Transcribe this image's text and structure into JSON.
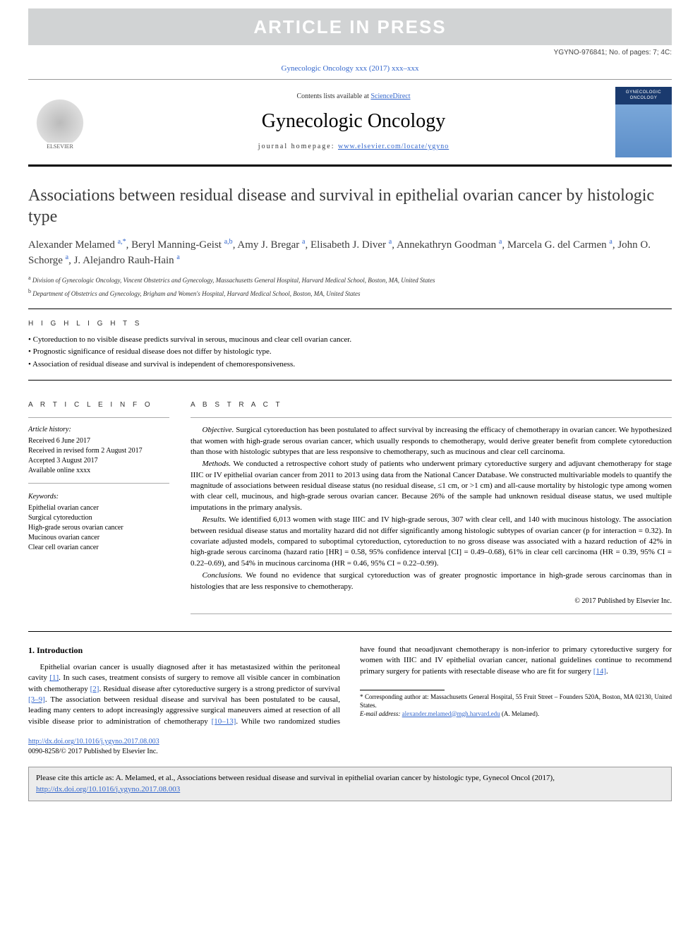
{
  "banner": {
    "text": "ARTICLE IN PRESS"
  },
  "topRight": "YGYNO-976841; No. of pages: 7; 4C:",
  "journalRef": "Gynecologic Oncology xxx (2017) xxx–xxx",
  "masthead": {
    "contentsPrefix": "Contents lists available at ",
    "contentsLink": "ScienceDirect",
    "journalTitle": "Gynecologic Oncology",
    "homepagePrefix": "journal homepage: ",
    "homepageLink": "www.elsevier.com/locate/ygyno",
    "publisher": "ELSEVIER",
    "coverTitle": "GYNECOLOGIC ONCOLOGY"
  },
  "article": {
    "title": "Associations between residual disease and survival in epithelial ovarian cancer by histologic type",
    "authors": [
      {
        "name": "Alexander Melamed",
        "aff": "a,*"
      },
      {
        "name": "Beryl Manning-Geist",
        "aff": "a,b"
      },
      {
        "name": "Amy J. Bregar",
        "aff": "a"
      },
      {
        "name": "Elisabeth J. Diver",
        "aff": "a"
      },
      {
        "name": "Annekathryn Goodman",
        "aff": "a"
      },
      {
        "name": "Marcela G. del Carmen",
        "aff": "a"
      },
      {
        "name": "John O. Schorge",
        "aff": "a"
      },
      {
        "name": "J. Alejandro Rauh-Hain",
        "aff": "a"
      }
    ],
    "affiliations": [
      {
        "key": "a",
        "text": "Division of Gynecologic Oncology, Vincent Obstetrics and Gynecology, Massachusetts General Hospital, Harvard Medical School, Boston, MA, United States"
      },
      {
        "key": "b",
        "text": "Department of Obstetrics and Gynecology, Brigham and Women's Hospital, Harvard Medical School, Boston, MA, United States"
      }
    ]
  },
  "highlights": {
    "label": "H I G H L I G H T S",
    "items": [
      "Cytoreduction to no visible disease predicts survival in serous, mucinous and clear cell ovarian cancer.",
      "Prognostic significance of residual disease does not differ by histologic type.",
      "Association of residual disease and survival is independent of chemoresponsiveness."
    ]
  },
  "articleInfo": {
    "label": "A R T I C L E   I N F O",
    "historyHead": "Article history:",
    "history": [
      "Received 6 June 2017",
      "Received in revised form 2 August 2017",
      "Accepted 3 August 2017",
      "Available online xxxx"
    ],
    "keywordsHead": "Keywords:",
    "keywords": [
      "Epithelial ovarian cancer",
      "Surgical cytoreduction",
      "High-grade serous ovarian cancer",
      "Mucinous ovarian cancer",
      "Clear cell ovarian cancer"
    ]
  },
  "abstract": {
    "label": "A B S T R A C T",
    "paras": [
      {
        "label": "Objective.",
        "text": " Surgical cytoreduction has been postulated to affect survival by increasing the efficacy of chemotherapy in ovarian cancer. We hypothesized that women with high-grade serous ovarian cancer, which usually responds to chemotherapy, would derive greater benefit from complete cytoreduction than those with histologic subtypes that are less responsive to chemotherapy, such as mucinous and clear cell carcinoma."
      },
      {
        "label": "Methods.",
        "text": " We conducted a retrospective cohort study of patients who underwent primary cytoreductive surgery and adjuvant chemotherapy for stage IIIC or IV epithelial ovarian cancer from 2011 to 2013 using data from the National Cancer Database. We constructed multivariable models to quantify the magnitude of associations between residual disease status (no residual disease, ≤1 cm, or >1 cm) and all-cause mortality by histologic type among women with clear cell, mucinous, and high-grade serous ovarian cancer. Because 26% of the sample had unknown residual disease status, we used multiple imputations in the primary analysis."
      },
      {
        "label": "Results.",
        "text": " We identified 6,013 women with stage IIIC and IV high-grade serous, 307 with clear cell, and 140 with mucinous histology. The association between residual disease status and mortality hazard did not differ significantly among histologic subtypes of ovarian cancer (p for interaction = 0.32). In covariate adjusted models, compared to suboptimal cytoreduction, cytoreduction to no gross disease was associated with a hazard reduction of 42% in high-grade serous carcinoma (hazard ratio [HR] = 0.58, 95% confidence interval [CI] = 0.49–0.68), 61% in clear cell carcinoma (HR = 0.39, 95% CI = 0.22–0.69), and 54% in mucinous carcinoma (HR = 0.46, 95% CI = 0.22–0.99)."
      },
      {
        "label": "Conclusions.",
        "text": " We found no evidence that surgical cytoreduction was of greater prognostic importance in high-grade serous carcinomas than in histologies that are less responsive to chemotherapy."
      }
    ],
    "copyright": "© 2017 Published by Elsevier Inc."
  },
  "intro": {
    "heading": "1. Introduction",
    "p1a": "Epithelial ovarian cancer is usually diagnosed after it has metastasized within the peritoneal cavity ",
    "p1ref1": "[1]",
    "p1b": ". In such cases, treatment consists of surgery to remove all visible cancer in combination with ",
    "p2a": "chemotherapy ",
    "p2ref2": "[2]",
    "p2b": ". Residual disease after cytoreductive surgery is a strong predictor of survival ",
    "p2ref39": "[3–9]",
    "p2c": ". The association between residual disease and survival has been postulated to be causal, leading many centers to adopt increasingly aggressive surgical maneuvers aimed at resection of all visible disease prior to administration of chemotherapy ",
    "p2ref1013": "[10–13]",
    "p2d": ". While two randomized studies have found that neoadjuvant chemotherapy is non-inferior to primary cytoreductive surgery for women with IIIC and IV epithelial ovarian cancer, national guidelines continue to recommend primary surgery for patients with resectable disease who are fit for surgery ",
    "p2ref14": "[14]",
    "p2e": "."
  },
  "footnotes": {
    "corrPrefix": "* Corresponding author at: ",
    "corrAddress": "Massachusetts General Hospital, 55 Fruit Street – Founders 520A, Boston, MA 02130, United States.",
    "emailLabel": "E-mail address: ",
    "email": "alexander.melamed@mgh.harvard.edu",
    "emailSuffix": " (A. Melamed)."
  },
  "doi": {
    "url": "http://dx.doi.org/10.1016/j.ygyno.2017.08.003",
    "issn": "0090-8258/© 2017 Published by Elsevier Inc."
  },
  "citeBox": {
    "prefix": "Please cite this article as: A. Melamed, et al., Associations between residual disease and survival in epithelial ovarian cancer by histologic type, Gynecol Oncol (2017), ",
    "url": "http://dx.doi.org/10.1016/j.ygyno.2017.08.003"
  },
  "colors": {
    "bannerBg": "#d1d3d4",
    "bannerText": "#ffffff",
    "link": "#3366cc",
    "text": "#000000",
    "softText": "#3b3b3b",
    "citeBg": "#ececec"
  }
}
